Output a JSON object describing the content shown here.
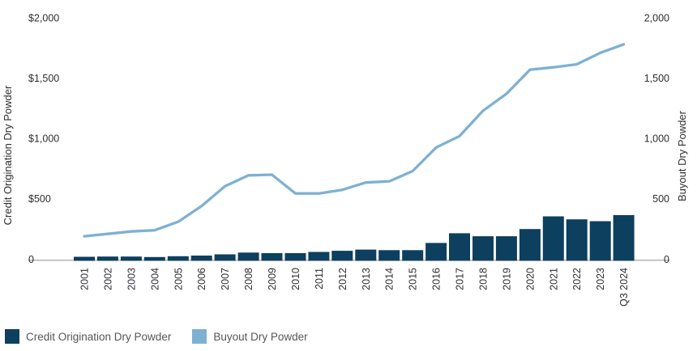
{
  "chart_data": {
    "type": "bar",
    "subtype": "combo dual-axis (bars + line)",
    "categories": [
      "2001",
      "2002",
      "2003",
      "2004",
      "2005",
      "2006",
      "2007",
      "2008",
      "2009",
      "2010",
      "2011",
      "2012",
      "2013",
      "2014",
      "2015",
      "2016",
      "2017",
      "2018",
      "2019",
      "2020",
      "2021",
      "2022",
      "2023",
      "Q3 2024"
    ],
    "series": [
      {
        "name": "Credit Origination Dry Powder",
        "type": "bar",
        "axis": "left",
        "color": "#0d3f5f",
        "values": [
          20,
          22,
          22,
          18,
          25,
          30,
          40,
          55,
          50,
          50,
          60,
          70,
          80,
          75,
          75,
          135,
          215,
          190,
          190,
          250,
          355,
          330,
          315,
          365
        ]
      },
      {
        "name": "Buyout Dry Powder",
        "type": "line",
        "axis": "right",
        "color": "#7db1d4",
        "values": [
          190,
          210,
          230,
          240,
          310,
          440,
          605,
          695,
          700,
          545,
          545,
          575,
          635,
          645,
          730,
          925,
          1020,
          1230,
          1370,
          1570,
          1590,
          1615,
          1710,
          1780
        ]
      }
    ],
    "left_axis": {
      "title": "Credit Origination Dry Powder",
      "tick_values": [
        0,
        500,
        1000,
        1500,
        2000
      ],
      "tick_labels": [
        "0",
        "$500",
        "$1,000",
        "$1,500",
        "$2,000"
      ],
      "range": [
        0,
        2000
      ]
    },
    "right_axis": {
      "title": "Buyout Dry Powder",
      "tick_values": [
        0,
        500,
        1000,
        1500,
        2000
      ],
      "tick_labels": [
        "0",
        "500",
        "1,000",
        "1,500",
        "2,000"
      ],
      "range": [
        0,
        2000
      ]
    },
    "grid": false,
    "legend": {
      "position": "bottom-left",
      "items": [
        {
          "label": "Credit Origination Dry Powder",
          "color": "#0d3f5f"
        },
        {
          "label": "Buyout Dry Powder",
          "color": "#7db1d4"
        }
      ]
    },
    "colors": {
      "bar": "#0d3f5f",
      "line": "#7db1d4",
      "axis_line": "#b5b5b5",
      "tick_text": "#2e2e33",
      "legend_text": "#55565a",
      "background": "#ffffff"
    }
  }
}
